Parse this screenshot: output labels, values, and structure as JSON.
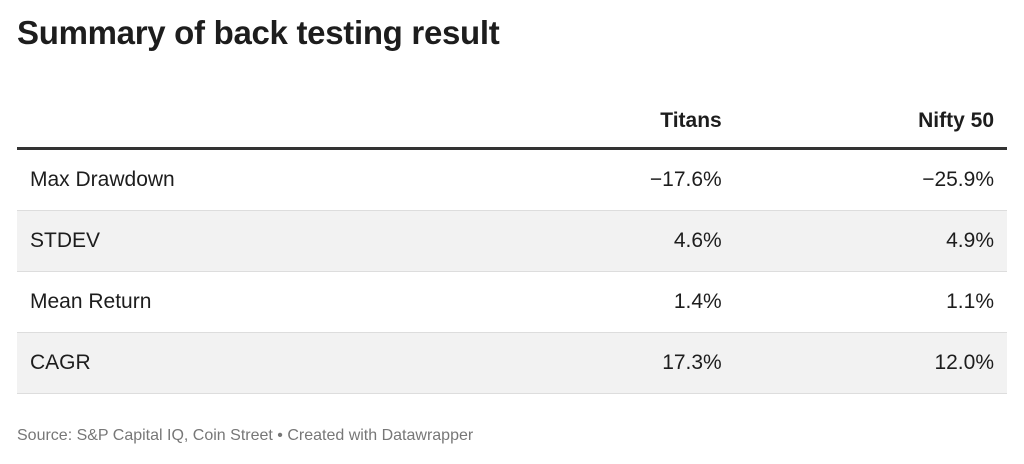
{
  "header": {
    "title": "Summary of back testing result"
  },
  "table": {
    "columns": [
      "",
      "Titans",
      "Nifty 50"
    ],
    "rows": [
      [
        "Max Drawdown",
        "−17.6%",
        "−25.9%"
      ],
      [
        "STDEV",
        "4.6%",
        "4.9%"
      ],
      [
        "Mean Return",
        "1.4%",
        "1.1%"
      ],
      [
        "CAGR",
        "17.3%",
        "12.0%"
      ]
    ]
  },
  "footer": {
    "source": "Source: S&P Capital IQ, Coin Street • Created with Datawrapper"
  }
}
